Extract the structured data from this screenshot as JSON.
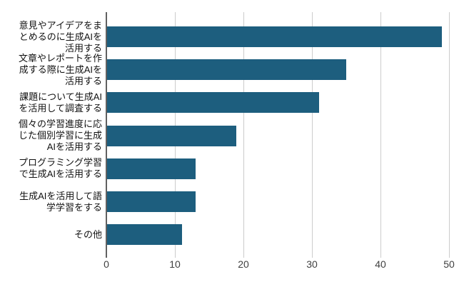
{
  "chart_data": {
    "type": "bar",
    "orientation": "horizontal",
    "title": "",
    "xlabel": "",
    "ylabel": "",
    "categories": [
      "意見やアイデアをま\nとめるのに生成AIを\n活用する",
      "文章やレポートを作\n成する際に生成AIを\n活用する",
      "課題について生成AI\nを活用して調査する",
      "個々の学習進度に応\nじた個別学習に生成\nAIを活用する",
      "プログラミング学習\nで生成AIを活用する",
      "生成AIを活用して語\n学学習をする",
      "その他"
    ],
    "values": [
      49,
      35,
      31,
      19,
      13,
      13,
      11
    ],
    "xlim": [
      0,
      50
    ],
    "x_ticks": [
      "0",
      "10",
      "20",
      "30",
      "40",
      "50"
    ],
    "grid": "vertical",
    "legend": "none",
    "colors": {
      "bar": "#1d5e7e",
      "gridline": "#cccccc",
      "axis_line": "#616161",
      "tick_label": "#404040",
      "category_label": "#111111",
      "background": "#ffffff"
    }
  }
}
